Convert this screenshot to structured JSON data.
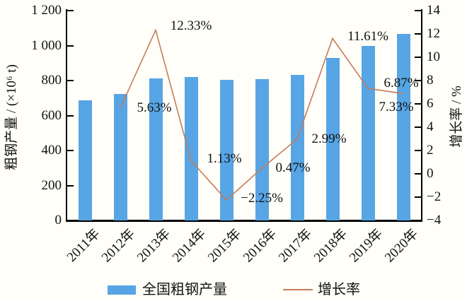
{
  "chart_data": {
    "type": "bar+line combo",
    "title": "",
    "categories": [
      "2011年",
      "2012年",
      "2013年",
      "2014年",
      "2015年",
      "2016年",
      "2017年",
      "2018年",
      "2019年",
      "2020年"
    ],
    "bar_series": {
      "name": "全国粗钢产量",
      "axis": "left",
      "unit": "×10⁶ t",
      "color": "#57A5E4",
      "values": [
        685,
        724,
        813,
        822,
        804,
        808,
        832,
        928,
        996,
        1065
      ]
    },
    "line_series": {
      "name": "增长率",
      "axis": "right",
      "unit": "%",
      "color": "#C67B58",
      "values": [
        null,
        5.63,
        12.33,
        1.13,
        -2.25,
        0.47,
        2.99,
        11.61,
        7.33,
        6.87
      ],
      "point_labels": [
        "",
        "5.63%",
        "12.33%",
        "1.13%",
        "−2.25%",
        "0.47%",
        "2.99%",
        "11.61%",
        "7.33%",
        "6.87%"
      ]
    },
    "left_axis": {
      "label": "粗钢产量 / (×10⁶ t)",
      "min": 0,
      "max": 1200,
      "tick_values": [
        0,
        200,
        400,
        600,
        800,
        1000,
        1200
      ],
      "tick_labels": [
        "0",
        "200",
        "400",
        "600",
        "800",
        "1 000",
        "1 200"
      ]
    },
    "right_axis": {
      "label": "增长率 / %",
      "min": -4,
      "max": 14,
      "tick_values": [
        -4,
        -2,
        0,
        2,
        4,
        6,
        8,
        10,
        12,
        14
      ],
      "tick_labels": [
        "−4",
        "−2",
        "0",
        "2",
        "4",
        "6",
        "8",
        "10",
        "12",
        "14"
      ]
    },
    "legend": {
      "bar_label": "全国粗钢产量",
      "line_label": "增长率"
    },
    "grid": false,
    "legend_position": "bottom-center"
  },
  "colors": {
    "background": "#FFFEF8",
    "axis": "#000000",
    "text": "#111111",
    "bar": "#57A5E4",
    "line": "#C67B58"
  }
}
